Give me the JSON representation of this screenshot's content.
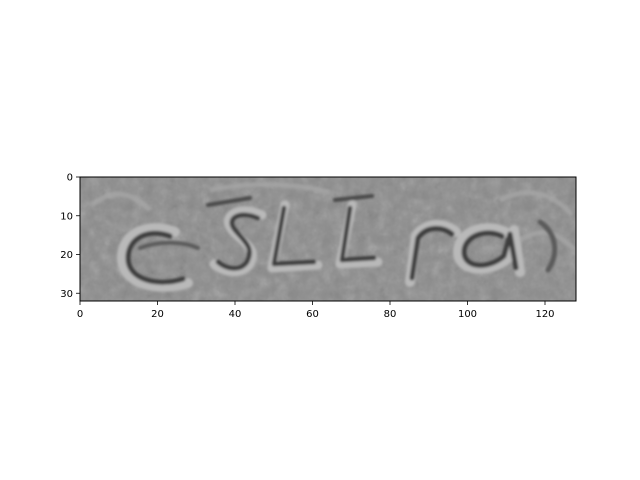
{
  "chart_data": {
    "type": "image",
    "title": "",
    "xlabel": "",
    "ylabel": "",
    "xlim": [
      0,
      128
    ],
    "ylim": [
      32,
      0
    ],
    "image_width": 128,
    "image_height": 32,
    "image_content": "grayscale noisy captcha with distorted characters",
    "x_ticks": [
      0,
      20,
      40,
      60,
      80,
      100,
      120
    ],
    "x_tick_labels": [
      "0",
      "20",
      "40",
      "60",
      "80",
      "100",
      "120"
    ],
    "y_ticks": [
      0,
      10,
      20,
      30
    ],
    "y_tick_labels": [
      "0",
      "10",
      "20",
      "30"
    ],
    "grid": false,
    "colors": {
      "image_base": "#8a8a8a",
      "glyph_dark": "#3c3c3c",
      "glyph_light": "#b9b9b9",
      "axes": "#000000",
      "background": "#ffffff"
    }
  }
}
